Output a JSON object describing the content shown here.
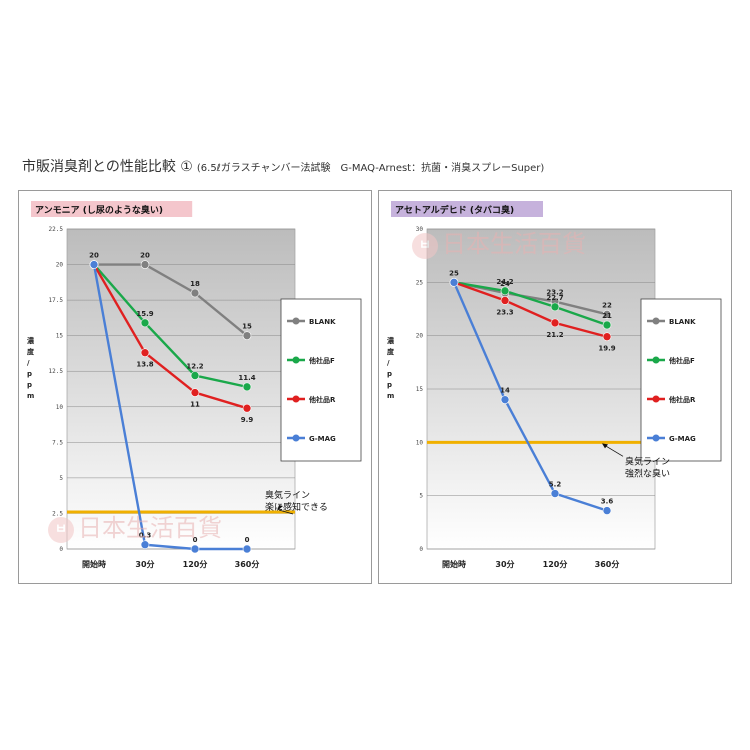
{
  "page": {
    "title": "市販消臭剤との性能比較 ①",
    "subtitle": "(6.5ℓガラスチャンバー法試験　G-MAQ-Arnest：抗菌・消臭スプレーSuper)"
  },
  "watermark": {
    "badge": "ㅂ",
    "text": "日本生活百貨"
  },
  "chart_data": [
    {
      "type": "line",
      "title": "アンモニア (し尿のような臭い)",
      "title_bg": "#f4c6cc",
      "ylabel": "濃度/ppm",
      "ylim": [
        0,
        22.5
      ],
      "yticks": [
        "0",
        "2.5",
        "5",
        "7.5",
        "10",
        "12.5",
        "15",
        "17.5",
        "20",
        "22.5"
      ],
      "categories": [
        "開始時",
        "30分",
        "120分",
        "360分"
      ],
      "series": [
        {
          "name": "BLANK",
          "color": "#808080",
          "values": [
            20,
            20,
            18,
            15
          ],
          "labels": [
            "20",
            "20",
            "18",
            "15"
          ]
        },
        {
          "name": "他社品F",
          "color": "#1aa84a",
          "values": [
            20,
            15.9,
            12.2,
            11.4
          ],
          "labels": [
            "",
            "15.9",
            "12.2",
            "11.4"
          ]
        },
        {
          "name": "他社品R",
          "color": "#e02020",
          "values": [
            20,
            13.8,
            11,
            9.9
          ],
          "labels": [
            "",
            "13.8",
            "11",
            "9.9"
          ]
        },
        {
          "name": "G-MAG",
          "color": "#4a7fd6",
          "values": [
            20,
            0.3,
            0,
            0
          ],
          "labels": [
            "",
            "0.3",
            "0",
            "0"
          ]
        }
      ],
      "threshold": {
        "value": 2.6,
        "color": "#f0b000",
        "label_lines": [
          "臭気ライン",
          "楽に感知できる"
        ]
      }
    },
    {
      "type": "line",
      "title": "アセトアルデヒド (タバコ臭)",
      "title_bg": "#c6b2dc",
      "ylabel": "濃度/ppm",
      "ylim": [
        0,
        30
      ],
      "yticks": [
        "0",
        "5",
        "10",
        "15",
        "20",
        "25",
        "30"
      ],
      "categories": [
        "開始時",
        "30分",
        "120分",
        "360分"
      ],
      "series": [
        {
          "name": "BLANK",
          "color": "#808080",
          "values": [
            25,
            24,
            23.2,
            22
          ],
          "labels": [
            "25",
            "24",
            "23.2",
            "22"
          ]
        },
        {
          "name": "他社品F",
          "color": "#1aa84a",
          "values": [
            25,
            24.2,
            22.7,
            21
          ],
          "labels": [
            "",
            "24.2",
            "22.7",
            "21"
          ]
        },
        {
          "name": "他社品R",
          "color": "#e02020",
          "values": [
            25,
            23.3,
            21.2,
            19.9
          ],
          "labels": [
            "",
            "23.3",
            "21.2",
            "19.9"
          ]
        },
        {
          "name": "G-MAG",
          "color": "#4a7fd6",
          "values": [
            25,
            14,
            5.2,
            3.6
          ],
          "labels": [
            "",
            "14",
            "5.2",
            "3.6"
          ]
        }
      ],
      "threshold": {
        "value": 10,
        "color": "#f0b000",
        "label_lines": [
          "臭気ライン",
          "強烈な臭い"
        ]
      }
    }
  ]
}
